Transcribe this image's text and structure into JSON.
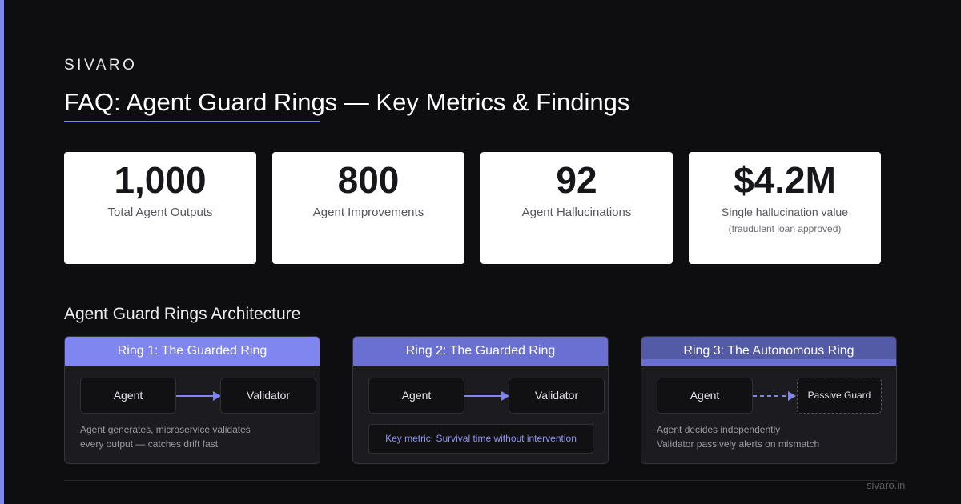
{
  "brand": "SIVARO",
  "title": "FAQ: Agent Guard Rings — Key Metrics & Findings",
  "stats": [
    {
      "value": "1,000",
      "label": "Total Agent Outputs",
      "sub": ""
    },
    {
      "value": "800",
      "label": "Agent Improvements",
      "sub": ""
    },
    {
      "value": "92",
      "label": "Agent Hallucinations",
      "sub": ""
    },
    {
      "value": "$4.2M",
      "label": "Single hallucination value",
      "sub": "(fraudulent loan approved)"
    }
  ],
  "section_title": "Agent Guard Rings Architecture",
  "rings": [
    {
      "title": "Ring 1: The Guarded Ring",
      "header_color": "#7f86f0",
      "node_a": "Agent",
      "node_b": "Validator",
      "desc_line1": "Agent generates, microservice validates",
      "desc_line2": "every output — catches drift fast"
    },
    {
      "title": "Ring 2: The Guarded Ring",
      "header_color": "#6a70d2",
      "node_a": "Agent",
      "node_b": "Validator",
      "metric": "Key metric: Survival time without intervention"
    },
    {
      "title": "Ring 3: The Autonomous Ring",
      "header_color": "#535aa6",
      "node_a": "Agent",
      "node_b": "Passive Guard",
      "desc_line1": "Agent decides independently",
      "desc_line2": "Validator passively alerts on mismatch"
    }
  ],
  "footer_url": "sivaro.in",
  "colors": {
    "accent": "#7f86f0",
    "background": "#0e0e10"
  }
}
